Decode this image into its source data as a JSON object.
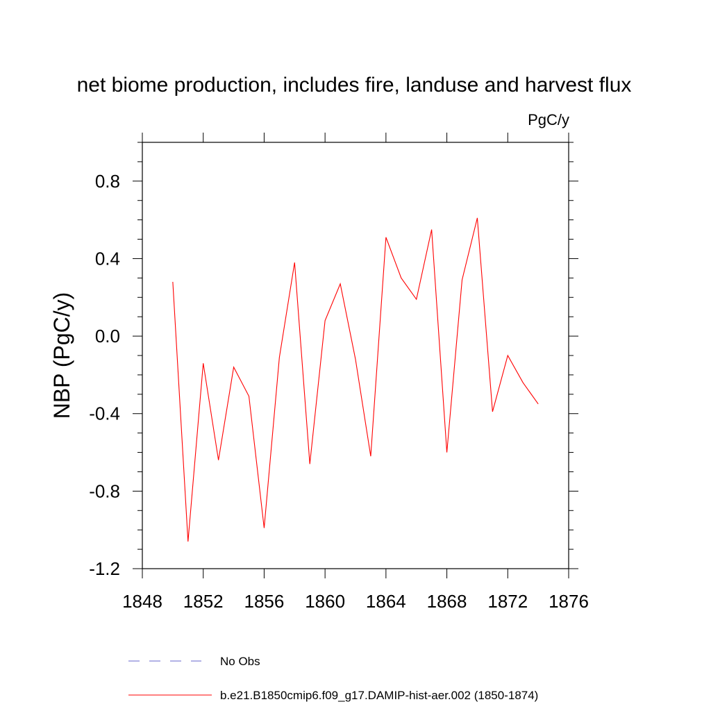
{
  "chart_data": {
    "type": "line",
    "title": "net biome production, includes fire, landuse and harvest flux",
    "units_label": "PgC/y",
    "ylabel": "NBP  (PgC/y)",
    "xlabel": "",
    "xlim": [
      1848,
      1876
    ],
    "ylim": [
      -1.2,
      1.0
    ],
    "x_ticks": [
      1848,
      1852,
      1856,
      1860,
      1864,
      1868,
      1872,
      1876
    ],
    "y_ticks": [
      -1.2,
      -0.8,
      -0.4,
      0.0,
      0.4,
      0.8
    ],
    "x_tick_labels": [
      "1848",
      "1852",
      "1856",
      "1860",
      "1864",
      "1868",
      "1872",
      "1876"
    ],
    "y_tick_labels": [
      "-1.2",
      "-0.8",
      "-0.4",
      "0.0",
      "0.4",
      "0.8"
    ],
    "grid": false,
    "legend_position": "bottom",
    "series": [
      {
        "name": "b.e21.B1850cmip6.f09_g17.DAMIP-hist-aer.002 (1850-1874)",
        "color": "#ff0000",
        "line_style": "solid",
        "x": [
          1850,
          1851,
          1852,
          1853,
          1854,
          1855,
          1856,
          1857,
          1858,
          1859,
          1860,
          1861,
          1862,
          1863,
          1864,
          1865,
          1866,
          1867,
          1868,
          1869,
          1870,
          1871,
          1872,
          1873,
          1874
        ],
        "y": [
          0.28,
          -1.06,
          -0.14,
          -0.64,
          -0.16,
          -0.31,
          -0.99,
          -0.11,
          0.38,
          -0.66,
          0.08,
          0.27,
          -0.12,
          -0.62,
          0.51,
          0.3,
          0.19,
          0.55,
          -0.6,
          0.29,
          0.61,
          -0.39,
          -0.1,
          -0.24,
          -0.35
        ]
      }
    ],
    "legend_entries": [
      {
        "label": "No Obs",
        "color": "#6666cc",
        "line_style": "dashed"
      },
      {
        "label": "b.e21.B1850cmip6.f09_g17.DAMIP-hist-aer.002 (1850-1874)",
        "color": "#ff0000",
        "line_style": "solid"
      }
    ]
  }
}
